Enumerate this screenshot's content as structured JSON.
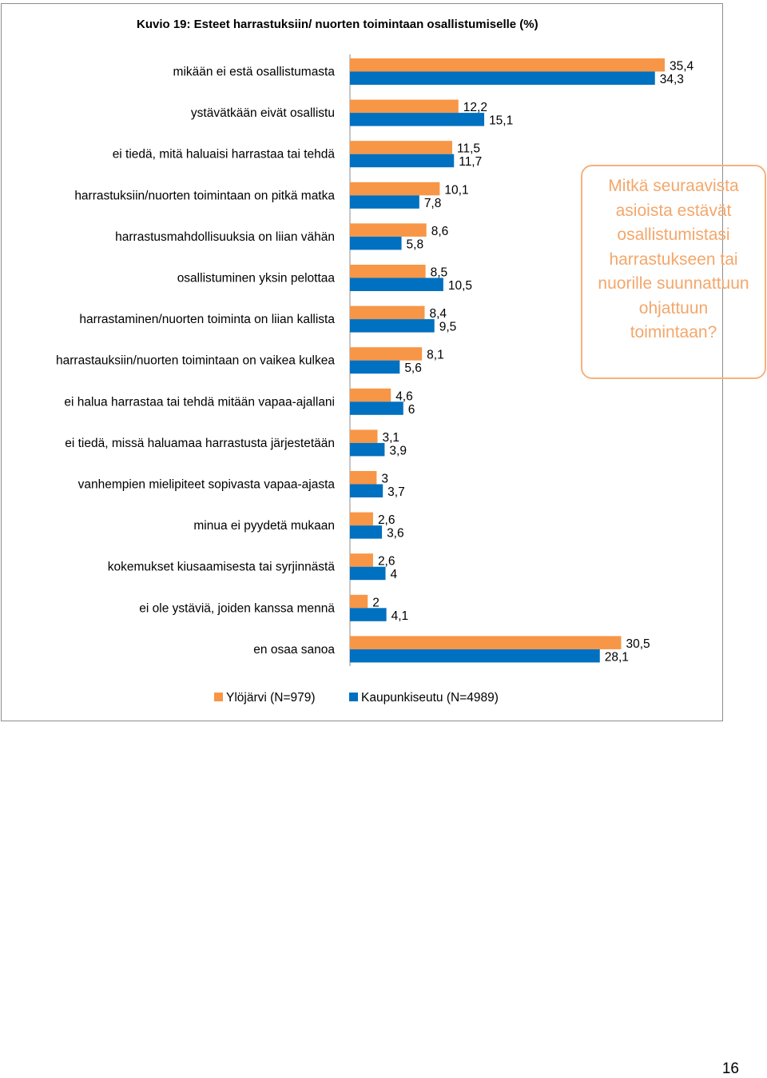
{
  "page": {
    "number": "16"
  },
  "callout": {
    "text": "Mitkä seuraavista asioista estävät osallistumistasi harrastukseen tai nuorille suunnattuun ohjattuun toimintaan?"
  },
  "colors": {
    "ylojarvi": "#F79646",
    "kaupunkiseutu": "#0070C0",
    "callout": "#F3A76B"
  },
  "chart_data": {
    "type": "bar",
    "orientation": "horizontal",
    "title": "Kuvio 19: Esteet harrastuksiin/ nuorten toimintaan osallistumiselle (%)",
    "xlabel": "",
    "ylabel": "",
    "grid": false,
    "legend_position": "bottom",
    "xlim": [
      0,
      40
    ],
    "categories": [
      "mikään ei estä osallistumasta",
      "ystävätkään eivät osallistu",
      "ei tiedä, mitä haluaisi harrastaa tai tehdä",
      "harrastuksiin/nuorten toimintaan on pitkä matka",
      "harrastusmahdollisuuksia on liian vähän",
      "osallistuminen yksin pelottaa",
      "harrastaminen/nuorten toiminta on liian kallista",
      "harrastauksiin/nuorten toimintaan on vaikea kulkea",
      "ei halua harrastaa tai tehdä mitään vapaa-ajallani",
      "ei tiedä, missä haluamaa harrastusta järjestetään",
      "vanhempien mielipiteet sopivasta vapaa-ajasta",
      "minua ei pyydetä mukaan",
      "kokemukset kiusaamisesta tai syrjinnästä",
      "ei ole ystäviä, joiden kanssa mennä",
      "en osaa sanoa"
    ],
    "series": [
      {
        "name": "Ylöjärvi (N=979)",
        "values": [
          35.4,
          12.2,
          11.5,
          10.1,
          8.6,
          8.5,
          8.4,
          8.1,
          4.6,
          3.1,
          3,
          2.6,
          2.6,
          2,
          30.5
        ],
        "labels": [
          "35,4",
          "12,2",
          "11,5",
          "10,1",
          "8,6",
          "8,5",
          "8,4",
          "8,1",
          "4,6",
          "3,1",
          "3",
          "2,6",
          "2,6",
          "2",
          "30,5"
        ]
      },
      {
        "name": "Kaupunkiseutu (N=4989)",
        "values": [
          34.3,
          15.1,
          11.7,
          7.8,
          5.8,
          10.5,
          9.5,
          5.6,
          6,
          3.9,
          3.7,
          3.6,
          4,
          4.1,
          28.1
        ],
        "labels": [
          "34,3",
          "15,1",
          "11,7",
          "7,8",
          "5,8",
          "10,5",
          "9,5",
          "5,6",
          "6",
          "3,9",
          "3,7",
          "3,6",
          "4",
          "4,1",
          "28,1"
        ]
      }
    ]
  }
}
